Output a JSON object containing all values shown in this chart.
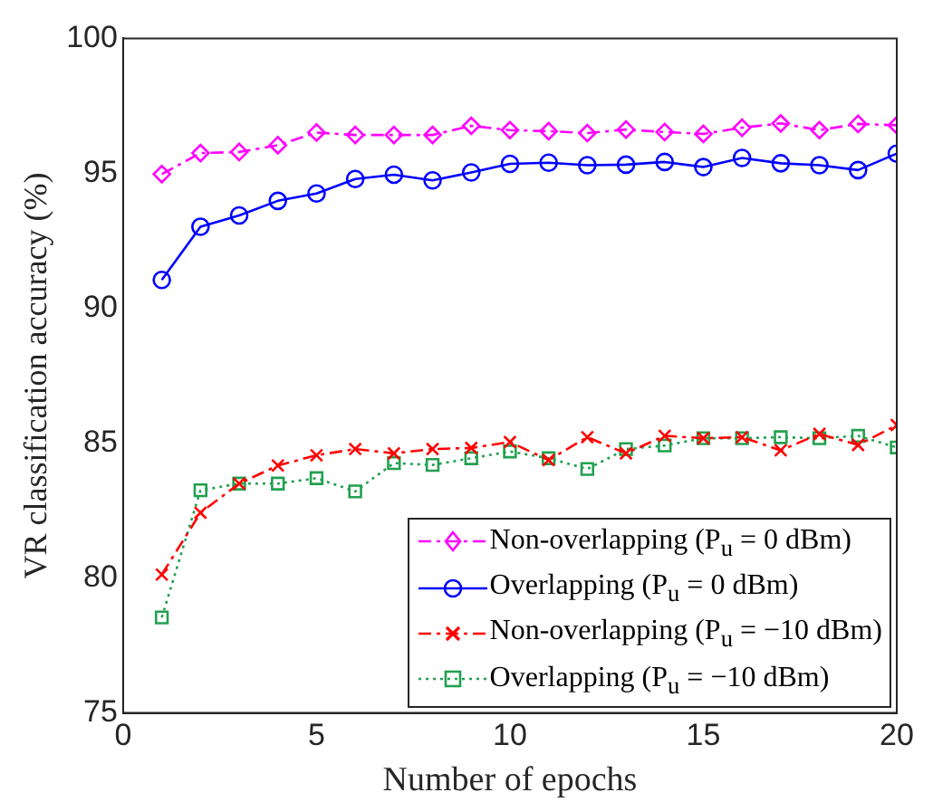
{
  "chart_data": {
    "type": "line",
    "xlabel": "Number of epochs",
    "ylabel": "VR classification accuracy (%)",
    "x": [
      1,
      2,
      3,
      4,
      5,
      6,
      7,
      8,
      9,
      10,
      11,
      12,
      13,
      14,
      15,
      16,
      17,
      18,
      19,
      20
    ],
    "xlim": [
      0,
      20
    ],
    "xticks": [
      0,
      5,
      10,
      15,
      20
    ],
    "ylim": [
      75,
      100
    ],
    "yticks": [
      75,
      80,
      85,
      90,
      95,
      100
    ],
    "legend": "bottom right",
    "series": [
      {
        "name": "Non-overlapping (P$_{u}$ = 0 dBm)",
        "color": "#ff00ff",
        "marker": "diamond",
        "line_style": "dashed",
        "values": [
          94.97,
          95.75,
          95.79,
          96.04,
          96.51,
          96.42,
          96.42,
          96.42,
          96.76,
          96.6,
          96.56,
          96.49,
          96.62,
          96.53,
          96.46,
          96.69,
          96.85,
          96.6,
          96.83,
          96.78
        ]
      },
      {
        "name": "Overlapping (P$_{u}$ = 0 dBm)",
        "color": "#0000ff",
        "marker": "circle",
        "line_style": "solid",
        "values": [
          91.05,
          93.02,
          93.44,
          93.98,
          94.25,
          94.79,
          94.95,
          94.74,
          95.03,
          95.35,
          95.39,
          95.3,
          95.32,
          95.42,
          95.23,
          95.57,
          95.37,
          95.3,
          95.12,
          95.73
        ]
      },
      {
        "name": "Non-overlapping (P$_{u}$ = −10 dBm)",
        "color": "#ff0000",
        "marker": "cross",
        "line_style": "dashed",
        "values": [
          80.13,
          82.42,
          83.5,
          84.17,
          84.55,
          84.78,
          84.62,
          84.78,
          84.82,
          85.04,
          84.37,
          85.22,
          84.62,
          85.27,
          85.18,
          85.22,
          84.73,
          85.34,
          84.93,
          85.67
        ]
      },
      {
        "name": "Overlapping (P$_{u}$ = −10 dBm)",
        "color": "#22a050",
        "marker": "square",
        "line_style": "dotted",
        "values": [
          78.54,
          83.25,
          83.5,
          83.5,
          83.7,
          83.21,
          84.26,
          84.19,
          84.44,
          84.69,
          84.44,
          84.04,
          84.78,
          84.91,
          85.18,
          85.18,
          85.22,
          85.18,
          85.27,
          84.84
        ]
      }
    ]
  }
}
